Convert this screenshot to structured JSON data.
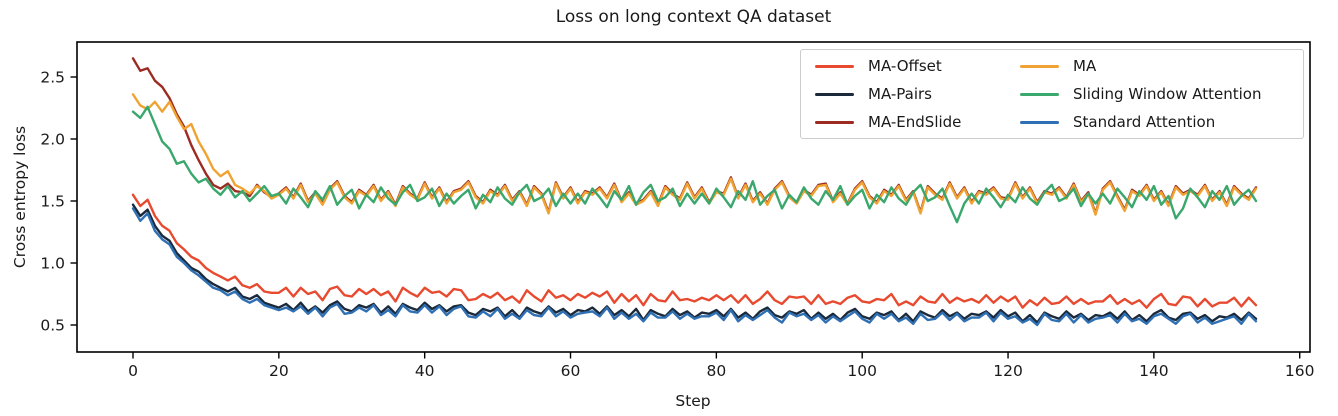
{
  "figure": {
    "title": "Loss on long context QA dataset",
    "background_color": "#ffffff",
    "text_color": "#1a1a1a",
    "spine_color": "#000000"
  },
  "axes": {
    "x_label": "Step",
    "y_label": "Cross entropy loss",
    "x_ticks": [
      0,
      20,
      40,
      60,
      80,
      100,
      120,
      140,
      160
    ],
    "y_ticks": [
      "0.5",
      "1.0",
      "1.5",
      "2.0",
      "2.5"
    ]
  },
  "legend": {
    "position": "upper right",
    "items": [
      {
        "label": "MA-Offset",
        "color": "#e84a30"
      },
      {
        "label": "MA-Pairs",
        "color": "#1b2a3b"
      },
      {
        "label": "MA-EndSlide",
        "color": "#9c2b21"
      },
      {
        "label": "MA",
        "color": "#f0a332"
      },
      {
        "label": "Sliding Window Attention",
        "color": "#3aa76d"
      },
      {
        "label": "Standard Attention",
        "color": "#2f6fb3"
      }
    ]
  },
  "chart_data": {
    "type": "line",
    "title": "Loss on long context QA dataset",
    "xlabel": "Step",
    "ylabel": "Cross entropy loss",
    "x0": 0,
    "x_step": 1,
    "xlim": [
      -7.7,
      162.7
    ],
    "ylim": [
      0.28,
      2.78
    ],
    "grid": false,
    "legend_position": "upper right",
    "series": [
      {
        "name": "MA-Offset",
        "color": "#e84a30",
        "values": [
          1.55,
          1.46,
          1.51,
          1.38,
          1.3,
          1.26,
          1.16,
          1.11,
          1.05,
          1.02,
          0.96,
          0.92,
          0.89,
          0.86,
          0.89,
          0.82,
          0.8,
          0.83,
          0.77,
          0.76,
          0.76,
          0.8,
          0.73,
          0.8,
          0.75,
          0.77,
          0.7,
          0.79,
          0.81,
          0.74,
          0.73,
          0.79,
          0.75,
          0.79,
          0.74,
          0.77,
          0.69,
          0.8,
          0.76,
          0.73,
          0.8,
          0.76,
          0.77,
          0.73,
          0.79,
          0.78,
          0.7,
          0.71,
          0.75,
          0.72,
          0.76,
          0.7,
          0.73,
          0.68,
          0.78,
          0.73,
          0.69,
          0.78,
          0.72,
          0.74,
          0.7,
          0.75,
          0.72,
          0.76,
          0.73,
          0.77,
          0.68,
          0.75,
          0.69,
          0.74,
          0.66,
          0.75,
          0.7,
          0.69,
          0.77,
          0.7,
          0.71,
          0.69,
          0.72,
          0.7,
          0.74,
          0.7,
          0.74,
          0.68,
          0.74,
          0.67,
          0.71,
          0.77,
          0.7,
          0.67,
          0.73,
          0.72,
          0.73,
          0.67,
          0.74,
          0.67,
          0.69,
          0.67,
          0.72,
          0.74,
          0.69,
          0.68,
          0.71,
          0.7,
          0.75,
          0.66,
          0.69,
          0.66,
          0.73,
          0.69,
          0.68,
          0.75,
          0.68,
          0.72,
          0.69,
          0.71,
          0.68,
          0.74,
          0.68,
          0.73,
          0.69,
          0.73,
          0.64,
          0.7,
          0.66,
          0.72,
          0.67,
          0.68,
          0.73,
          0.67,
          0.71,
          0.67,
          0.69,
          0.69,
          0.74,
          0.67,
          0.71,
          0.67,
          0.7,
          0.64,
          0.71,
          0.75,
          0.67,
          0.66,
          0.73,
          0.72,
          0.65,
          0.71,
          0.65,
          0.68,
          0.68,
          0.72,
          0.65,
          0.72,
          0.66
        ]
      },
      {
        "name": "MA-Pairs",
        "color": "#1b2a3b",
        "values": [
          1.47,
          1.38,
          1.43,
          1.3,
          1.22,
          1.18,
          1.08,
          1.02,
          0.96,
          0.93,
          0.87,
          0.83,
          0.8,
          0.77,
          0.8,
          0.73,
          0.71,
          0.74,
          0.68,
          0.66,
          0.64,
          0.67,
          0.62,
          0.68,
          0.61,
          0.65,
          0.6,
          0.66,
          0.69,
          0.63,
          0.61,
          0.66,
          0.64,
          0.67,
          0.6,
          0.65,
          0.59,
          0.67,
          0.64,
          0.62,
          0.68,
          0.63,
          0.66,
          0.61,
          0.65,
          0.66,
          0.6,
          0.58,
          0.63,
          0.61,
          0.64,
          0.57,
          0.62,
          0.56,
          0.64,
          0.61,
          0.59,
          0.65,
          0.6,
          0.63,
          0.58,
          0.62,
          0.61,
          0.64,
          0.59,
          0.65,
          0.58,
          0.62,
          0.57,
          0.63,
          0.54,
          0.62,
          0.59,
          0.57,
          0.63,
          0.58,
          0.61,
          0.56,
          0.6,
          0.59,
          0.62,
          0.57,
          0.63,
          0.56,
          0.6,
          0.55,
          0.61,
          0.64,
          0.58,
          0.56,
          0.61,
          0.59,
          0.62,
          0.55,
          0.6,
          0.55,
          0.59,
          0.54,
          0.6,
          0.63,
          0.57,
          0.55,
          0.6,
          0.58,
          0.61,
          0.54,
          0.59,
          0.53,
          0.61,
          0.58,
          0.56,
          0.62,
          0.57,
          0.6,
          0.55,
          0.59,
          0.58,
          0.61,
          0.56,
          0.62,
          0.57,
          0.6,
          0.53,
          0.58,
          0.52,
          0.6,
          0.57,
          0.55,
          0.61,
          0.56,
          0.59,
          0.54,
          0.58,
          0.57,
          0.6,
          0.55,
          0.61,
          0.54,
          0.58,
          0.53,
          0.59,
          0.62,
          0.56,
          0.54,
          0.59,
          0.6,
          0.55,
          0.58,
          0.53,
          0.57,
          0.56,
          0.59,
          0.54,
          0.6,
          0.55
        ]
      },
      {
        "name": "MA-EndSlide",
        "color": "#9c2b21",
        "values": [
          2.65,
          2.55,
          2.57,
          2.47,
          2.42,
          2.33,
          2.2,
          2.1,
          1.95,
          1.83,
          1.72,
          1.63,
          1.6,
          1.64,
          1.58,
          1.57,
          1.54,
          1.63,
          1.57,
          1.53,
          1.56,
          1.61,
          1.53,
          1.64,
          1.5,
          1.57,
          1.48,
          1.6,
          1.66,
          1.54,
          1.49,
          1.59,
          1.55,
          1.63,
          1.51,
          1.58,
          1.47,
          1.62,
          1.56,
          1.52,
          1.65,
          1.53,
          1.61,
          1.49,
          1.58,
          1.6,
          1.66,
          1.54,
          1.49,
          1.59,
          1.55,
          1.63,
          1.51,
          1.58,
          1.47,
          1.62,
          1.56,
          1.41,
          1.65,
          1.53,
          1.61,
          1.49,
          1.58,
          1.56,
          1.61,
          1.53,
          1.64,
          1.5,
          1.57,
          1.48,
          1.51,
          1.58,
          1.47,
          1.62,
          1.56,
          1.52,
          1.65,
          1.53,
          1.61,
          1.49,
          1.58,
          1.56,
          1.69,
          1.53,
          1.64,
          1.5,
          1.57,
          1.48,
          1.6,
          1.66,
          1.54,
          1.49,
          1.59,
          1.55,
          1.63,
          1.64,
          1.5,
          1.57,
          1.48,
          1.6,
          1.66,
          1.54,
          1.49,
          1.59,
          1.55,
          1.63,
          1.51,
          1.58,
          1.41,
          1.62,
          1.56,
          1.52,
          1.65,
          1.53,
          1.61,
          1.49,
          1.58,
          1.56,
          1.61,
          1.53,
          1.52,
          1.65,
          1.53,
          1.61,
          1.49,
          1.58,
          1.56,
          1.61,
          1.53,
          1.64,
          1.5,
          1.57,
          1.4,
          1.6,
          1.66,
          1.54,
          1.43,
          1.59,
          1.55,
          1.63,
          1.51,
          1.58,
          1.47,
          1.62,
          1.56,
          1.59,
          1.55,
          1.63,
          1.51,
          1.58,
          1.47,
          1.62,
          1.56,
          1.52,
          1.61
        ]
      },
      {
        "name": "MA",
        "color": "#f0a332",
        "values": [
          2.36,
          2.27,
          2.24,
          2.3,
          2.22,
          2.3,
          2.18,
          2.08,
          2.12,
          1.98,
          1.88,
          1.76,
          1.7,
          1.74,
          1.63,
          1.6,
          1.56,
          1.62,
          1.58,
          1.52,
          1.55,
          1.6,
          1.52,
          1.63,
          1.49,
          1.56,
          1.47,
          1.59,
          1.65,
          1.53,
          1.48,
          1.58,
          1.54,
          1.62,
          1.5,
          1.57,
          1.46,
          1.61,
          1.55,
          1.51,
          1.64,
          1.52,
          1.6,
          1.48,
          1.57,
          1.59,
          1.65,
          1.53,
          1.48,
          1.58,
          1.54,
          1.62,
          1.5,
          1.57,
          1.46,
          1.61,
          1.55,
          1.4,
          1.64,
          1.52,
          1.6,
          1.48,
          1.57,
          1.55,
          1.6,
          1.52,
          1.63,
          1.49,
          1.56,
          1.47,
          1.5,
          1.57,
          1.46,
          1.61,
          1.55,
          1.51,
          1.64,
          1.52,
          1.6,
          1.48,
          1.57,
          1.55,
          1.68,
          1.52,
          1.63,
          1.49,
          1.56,
          1.47,
          1.59,
          1.65,
          1.53,
          1.48,
          1.58,
          1.54,
          1.62,
          1.63,
          1.49,
          1.56,
          1.47,
          1.59,
          1.65,
          1.53,
          1.48,
          1.58,
          1.54,
          1.62,
          1.5,
          1.57,
          1.4,
          1.61,
          1.55,
          1.51,
          1.64,
          1.52,
          1.6,
          1.48,
          1.57,
          1.55,
          1.6,
          1.52,
          1.51,
          1.64,
          1.52,
          1.6,
          1.48,
          1.57,
          1.55,
          1.6,
          1.52,
          1.63,
          1.49,
          1.56,
          1.39,
          1.59,
          1.65,
          1.53,
          1.42,
          1.58,
          1.54,
          1.62,
          1.5,
          1.57,
          1.46,
          1.61,
          1.55,
          1.58,
          1.54,
          1.62,
          1.5,
          1.57,
          1.46,
          1.61,
          1.55,
          1.51,
          1.6
        ]
      },
      {
        "name": "Sliding Window Attention",
        "color": "#3aa76d",
        "values": [
          2.22,
          2.17,
          2.26,
          2.12,
          1.98,
          1.92,
          1.8,
          1.82,
          1.72,
          1.65,
          1.68,
          1.6,
          1.55,
          1.62,
          1.53,
          1.58,
          1.5,
          1.56,
          1.62,
          1.54,
          1.56,
          1.48,
          1.6,
          1.53,
          1.45,
          1.58,
          1.51,
          1.62,
          1.47,
          1.54,
          1.59,
          1.44,
          1.55,
          1.49,
          1.61,
          1.52,
          1.47,
          1.57,
          1.63,
          1.5,
          1.53,
          1.6,
          1.46,
          1.56,
          1.48,
          1.54,
          1.59,
          1.44,
          1.55,
          1.49,
          1.61,
          1.52,
          1.47,
          1.57,
          1.63,
          1.5,
          1.53,
          1.6,
          1.46,
          1.56,
          1.48,
          1.56,
          1.48,
          1.6,
          1.53,
          1.45,
          1.58,
          1.51,
          1.62,
          1.47,
          1.57,
          1.63,
          1.5,
          1.53,
          1.6,
          1.46,
          1.56,
          1.48,
          1.56,
          1.48,
          1.6,
          1.53,
          1.45,
          1.58,
          1.51,
          1.66,
          1.47,
          1.54,
          1.59,
          1.44,
          1.55,
          1.49,
          1.61,
          1.52,
          1.47,
          1.58,
          1.51,
          1.62,
          1.47,
          1.54,
          1.59,
          1.44,
          1.55,
          1.49,
          1.61,
          1.52,
          1.47,
          1.57,
          1.63,
          1.5,
          1.53,
          1.6,
          1.46,
          1.33,
          1.48,
          1.56,
          1.48,
          1.6,
          1.53,
          1.45,
          1.55,
          1.49,
          1.61,
          1.52,
          1.47,
          1.57,
          1.63,
          1.5,
          1.53,
          1.6,
          1.46,
          1.56,
          1.48,
          1.56,
          1.48,
          1.6,
          1.53,
          1.45,
          1.58,
          1.51,
          1.62,
          1.47,
          1.54,
          1.36,
          1.44,
          1.6,
          1.53,
          1.45,
          1.58,
          1.51,
          1.62,
          1.47,
          1.54,
          1.59,
          1.5
        ]
      },
      {
        "name": "Standard Attention",
        "color": "#2f6fb3",
        "values": [
          1.44,
          1.34,
          1.4,
          1.26,
          1.19,
          1.15,
          1.05,
          1.0,
          0.94,
          0.9,
          0.85,
          0.8,
          0.78,
          0.74,
          0.77,
          0.71,
          0.68,
          0.71,
          0.66,
          0.64,
          0.62,
          0.64,
          0.61,
          0.65,
          0.59,
          0.64,
          0.57,
          0.64,
          0.67,
          0.59,
          0.6,
          0.64,
          0.61,
          0.66,
          0.58,
          0.62,
          0.57,
          0.66,
          0.61,
          0.6,
          0.66,
          0.6,
          0.65,
          0.58,
          0.63,
          0.65,
          0.57,
          0.56,
          0.61,
          0.57,
          0.63,
          0.55,
          0.59,
          0.55,
          0.62,
          0.58,
          0.57,
          0.64,
          0.57,
          0.61,
          0.56,
          0.59,
          0.6,
          0.61,
          0.57,
          0.64,
          0.55,
          0.6,
          0.55,
          0.59,
          0.53,
          0.6,
          0.56,
          0.56,
          0.61,
          0.55,
          0.59,
          0.55,
          0.57,
          0.57,
          0.6,
          0.54,
          0.62,
          0.53,
          0.58,
          0.54,
          0.58,
          0.62,
          0.56,
          0.52,
          0.6,
          0.57,
          0.59,
          0.54,
          0.58,
          0.52,
          0.57,
          0.53,
          0.57,
          0.61,
          0.55,
          0.52,
          0.59,
          0.55,
          0.59,
          0.53,
          0.56,
          0.51,
          0.59,
          0.54,
          0.55,
          0.6,
          0.54,
          0.59,
          0.53,
          0.56,
          0.56,
          0.6,
          0.53,
          0.6,
          0.55,
          0.57,
          0.52,
          0.55,
          0.5,
          0.59,
          0.54,
          0.53,
          0.59,
          0.52,
          0.58,
          0.52,
          0.55,
          0.56,
          0.58,
          0.52,
          0.59,
          0.53,
          0.55,
          0.51,
          0.57,
          0.59,
          0.55,
          0.51,
          0.57,
          0.59,
          0.52,
          0.56,
          0.51,
          0.53,
          0.55,
          0.57,
          0.51,
          0.59,
          0.53
        ]
      }
    ]
  }
}
